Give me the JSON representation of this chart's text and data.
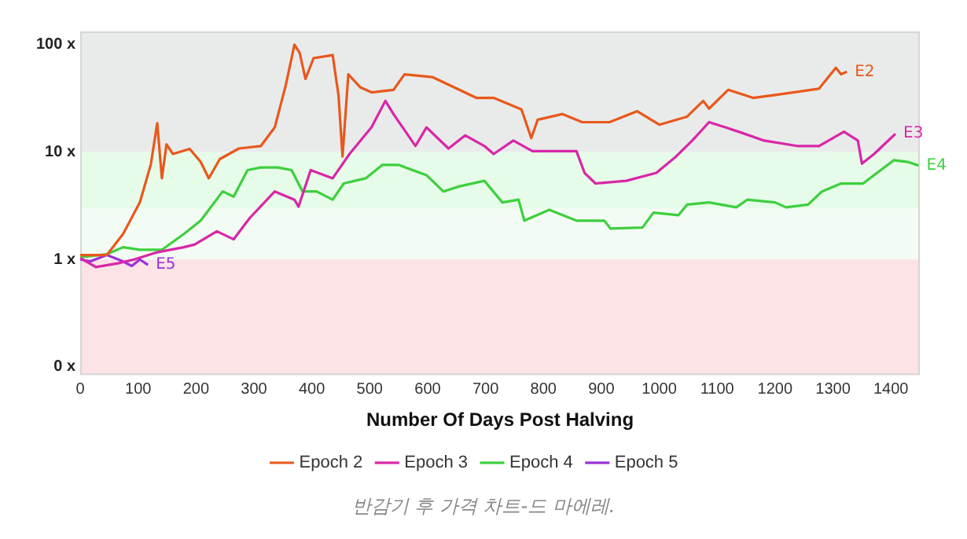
{
  "chart_data": {
    "type": "line",
    "xlabel": "Number Of Days Post Halving",
    "xlim": [
      0,
      1450
    ],
    "xticks": [
      0,
      100,
      200,
      300,
      400,
      500,
      600,
      700,
      800,
      900,
      1000,
      1100,
      1200,
      1300,
      1400
    ],
    "ylim": [
      0.084,
      133
    ],
    "log": "y",
    "yticks": [
      {
        "value": 0.1,
        "label": "0 x"
      },
      {
        "value": 1,
        "label": "1 x"
      },
      {
        "value": 10,
        "label": "10 x"
      },
      {
        "value": 100,
        "label": "100 x"
      }
    ],
    "grid": false,
    "legend": "bottom",
    "marker": "none",
    "line_style": "solid",
    "bands": [
      {
        "axis": "y",
        "from": 10,
        "to": 133,
        "color": "#e9ebea"
      },
      {
        "axis": "y",
        "from": 3,
        "to": 10,
        "color": "#e6fbe8"
      },
      {
        "axis": "y",
        "from": 1,
        "to": 3,
        "color": "#f3fcf4"
      },
      {
        "axis": "y",
        "from": 0.084,
        "to": 1,
        "color": "#fde3e6"
      }
    ],
    "series": [
      {
        "name": "Epoch 2",
        "color": "#e8581c",
        "x": [
          0,
          46,
          74,
          103,
          122,
          133,
          141,
          149,
          160,
          189,
          208,
          222,
          241,
          274,
          312,
          336,
          355,
          370,
          379,
          389,
          403,
          436,
          446,
          453,
          463,
          484,
          503,
          541,
          560,
          608,
          646,
          684,
          714,
          762,
          779,
          790,
          833,
          867,
          914,
          962,
          1000,
          1048,
          1076,
          1086,
          1119,
          1162,
          1200,
          1276,
          1305,
          1314,
          1324
        ],
        "values": [
          1.1,
          1.1,
          1.73,
          3.4,
          7.7,
          18.6,
          5.7,
          11.8,
          9.6,
          10.7,
          8.1,
          5.7,
          8.6,
          10.8,
          11.4,
          17,
          42,
          100,
          84,
          48,
          75,
          80,
          34,
          9.1,
          53,
          40,
          36,
          38,
          53,
          50,
          40,
          32,
          32,
          25,
          13.5,
          20,
          22.6,
          19,
          19,
          24,
          18,
          21.4,
          30,
          25.4,
          38,
          32,
          34,
          39,
          61,
          53,
          56
        ]
      },
      {
        "name": "Epoch 3",
        "color": "#d926a8",
        "x": [
          0,
          27,
          65,
          93,
          131,
          179,
          198,
          236,
          265,
          293,
          336,
          370,
          377,
          398,
          436,
          465,
          503,
          527,
          541,
          579,
          598,
          636,
          665,
          698,
          714,
          748,
          781,
          857,
          871,
          890,
          943,
          995,
          1029,
          1057,
          1086,
          1114,
          1143,
          1181,
          1238,
          1276,
          1319,
          1343,
          1350,
          1371,
          1400,
          1408
        ],
        "values": [
          1.03,
          0.85,
          0.92,
          1,
          1.16,
          1.3,
          1.38,
          1.83,
          1.54,
          2.44,
          4.3,
          3.6,
          3.1,
          6.8,
          5.7,
          9.6,
          17,
          30,
          22.6,
          11.4,
          17,
          10.8,
          14.3,
          11.4,
          9.6,
          12.8,
          10.2,
          10.2,
          6.4,
          5.1,
          5.4,
          6.4,
          9.1,
          12.8,
          19,
          17,
          15.1,
          12.8,
          11.4,
          11.4,
          15.5,
          12.8,
          7.8,
          9.6,
          13.5,
          14.8
        ]
      },
      {
        "name": "Epoch 4",
        "color": "#3ecf3e",
        "x": [
          0,
          46,
          74,
          103,
          141,
          179,
          208,
          246,
          265,
          289,
          312,
          341,
          365,
          384,
          408,
          436,
          455,
          493,
          522,
          550,
          598,
          627,
          655,
          698,
          729,
          757,
          767,
          810,
          857,
          905,
          916,
          971,
          990,
          1033,
          1048,
          1086,
          1133,
          1152,
          1200,
          1219,
          1257,
          1281,
          1314,
          1352,
          1405,
          1429,
          1448
        ],
        "values": [
          1.05,
          1.12,
          1.3,
          1.23,
          1.23,
          1.73,
          2.3,
          4.3,
          3.85,
          6.8,
          7.2,
          7.2,
          6.8,
          4.3,
          4.3,
          3.6,
          5.1,
          5.7,
          7.6,
          7.6,
          6.1,
          4.3,
          4.8,
          5.4,
          3.4,
          3.6,
          2.3,
          2.9,
          2.3,
          2.3,
          1.94,
          1.98,
          2.73,
          2.58,
          3.24,
          3.4,
          3.06,
          3.6,
          3.4,
          3.06,
          3.24,
          4.3,
          5.1,
          5.1,
          8.4,
          8.1,
          7.5
        ]
      },
      {
        "name": "Epoch 5",
        "color": "#9b30d9",
        "x": [
          0,
          17,
          46,
          70,
          89,
          103,
          117
        ],
        "values": [
          1,
          0.96,
          1.1,
          0.98,
          0.87,
          1,
          0.89
        ]
      }
    ],
    "annotations": [
      {
        "text": "E2",
        "x": 1324,
        "y": 56
      },
      {
        "text": "E3",
        "x": 1408,
        "y": 14.8
      },
      {
        "text": "E4",
        "x": 1448,
        "y": 7.5
      },
      {
        "text": "E5",
        "x": 117,
        "y": 0.89
      },
      "반감기 후 가격 차트-드 마에레."
    ]
  }
}
